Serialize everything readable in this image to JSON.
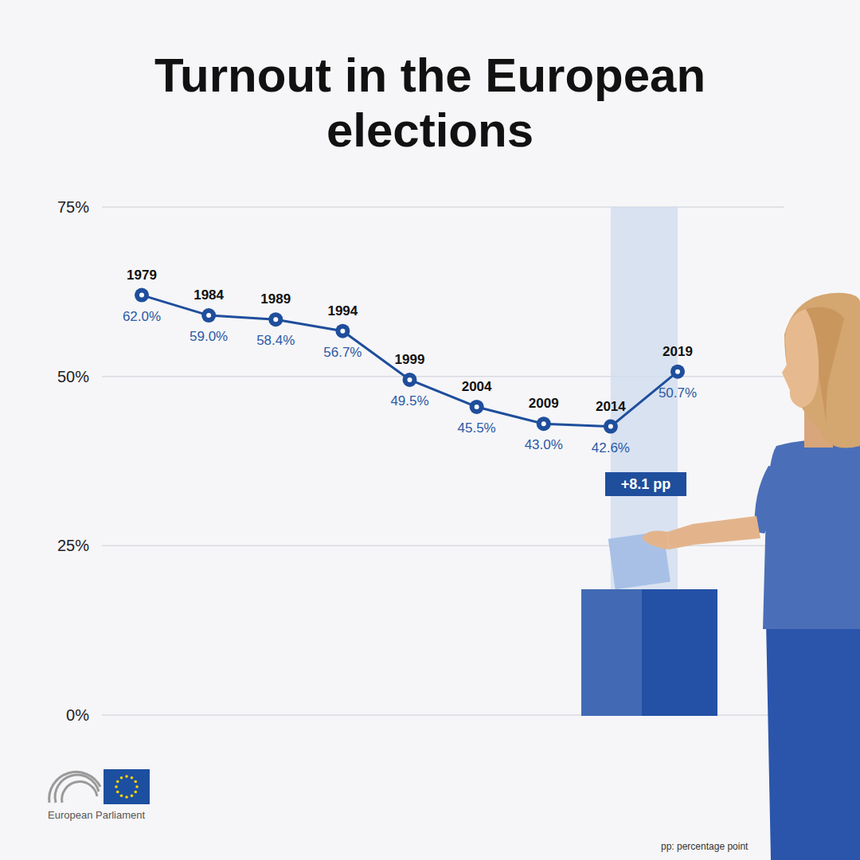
{
  "chart_data": {
    "type": "line",
    "title": "Turnout in the European elections",
    "categories": [
      "1979",
      "1984",
      "1989",
      "1994",
      "1999",
      "2004",
      "2009",
      "2014",
      "2019"
    ],
    "values": [
      62.0,
      59.0,
      58.4,
      56.7,
      49.5,
      45.5,
      43.0,
      42.6,
      50.7
    ],
    "value_labels": [
      "62.0%",
      "59.0%",
      "58.4%",
      "56.7%",
      "49.5%",
      "45.5%",
      "43.0%",
      "42.6%",
      "50.7%"
    ],
    "color": "#1f4e9c",
    "marker": "circle",
    "line_style": "solid",
    "ylim": [
      0,
      75
    ],
    "yticks": [
      {
        "value": 0,
        "label": "0%"
      },
      {
        "value": 25,
        "label": "25%"
      },
      {
        "value": 50,
        "label": "50%"
      },
      {
        "value": 75,
        "label": "75%"
      }
    ],
    "grid": true,
    "data_labels": true,
    "tick_labels": "y",
    "annotations": [
      "+8.1 pp",
      "pp: percentage point"
    ],
    "source": "European Parliament"
  }
}
